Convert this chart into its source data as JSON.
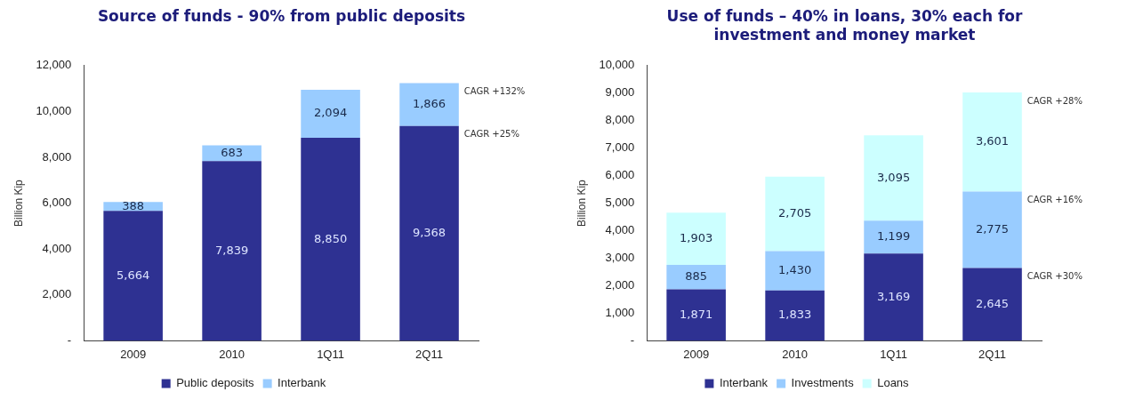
{
  "chart_data": [
    {
      "type": "bar",
      "title": "Source of funds - 90% from public deposits",
      "ylabel": "Billion Kip",
      "categories": [
        "2009",
        "2010",
        "1Q11",
        "2Q11"
      ],
      "stacked": true,
      "series": [
        {
          "name": "Public deposits",
          "color": "#2e3192",
          "values": [
            5664,
            7839,
            8850,
            9368
          ],
          "value_labels": [
            "5,664",
            "7,839",
            "8,850",
            "9,368"
          ]
        },
        {
          "name": "Interbank",
          "color": "#99ccff",
          "values": [
            388,
            683,
            2094,
            1866
          ],
          "value_labels": [
            "388",
            "683",
            "2,094",
            "1,866"
          ]
        }
      ],
      "ylim": [
        0,
        12000
      ],
      "yticks": [
        {
          "value": 0,
          "label": "-"
        },
        {
          "value": 2000,
          "label": "2,000"
        },
        {
          "value": 4000,
          "label": "4,000"
        },
        {
          "value": 6000,
          "label": "6,000"
        },
        {
          "value": 8000,
          "label": "8,000"
        },
        {
          "value": 10000,
          "label": "10,000"
        },
        {
          "value": 12000,
          "label": "12,000"
        }
      ],
      "grid": false,
      "legend": "bottom",
      "annotations": [
        "CAGR +132%",
        "CAGR +25%"
      ]
    },
    {
      "type": "bar",
      "title": "Use of funds – 40% in loans, 30% each for investment and money market",
      "ylabel": "Billion Kip",
      "categories": [
        "2009",
        "2010",
        "1Q11",
        "2Q11"
      ],
      "stacked": true,
      "series": [
        {
          "name": "Interbank",
          "color": "#2e3192",
          "values": [
            1871,
            1833,
            3169,
            2645
          ],
          "value_labels": [
            "1,871",
            "1,833",
            "3,169",
            "2,645"
          ]
        },
        {
          "name": "Investments",
          "color": "#99ccff",
          "values": [
            885,
            1430,
            1199,
            2775
          ],
          "value_labels": [
            "885",
            "1,430",
            "1,199",
            "2,775"
          ]
        },
        {
          "name": "Loans",
          "color": "#ccffff",
          "values": [
            1903,
            2705,
            3095,
            3601
          ],
          "value_labels": [
            "1,903",
            "2,705",
            "3,095",
            "3,601"
          ]
        }
      ],
      "ylim": [
        0,
        10000
      ],
      "yticks": [
        {
          "value": 0,
          "label": "-"
        },
        {
          "value": 1000,
          "label": "1,000"
        },
        {
          "value": 2000,
          "label": "2,000"
        },
        {
          "value": 3000,
          "label": "3,000"
        },
        {
          "value": 4000,
          "label": "4,000"
        },
        {
          "value": 5000,
          "label": "5,000"
        },
        {
          "value": 6000,
          "label": "6,000"
        },
        {
          "value": 7000,
          "label": "7,000"
        },
        {
          "value": 8000,
          "label": "8,000"
        },
        {
          "value": 9000,
          "label": "9,000"
        },
        {
          "value": 10000,
          "label": "10,000"
        }
      ],
      "grid": false,
      "legend": "bottom",
      "annotations": [
        "CAGR +28%",
        "CAGR +16%",
        "CAGR +30%"
      ]
    }
  ]
}
